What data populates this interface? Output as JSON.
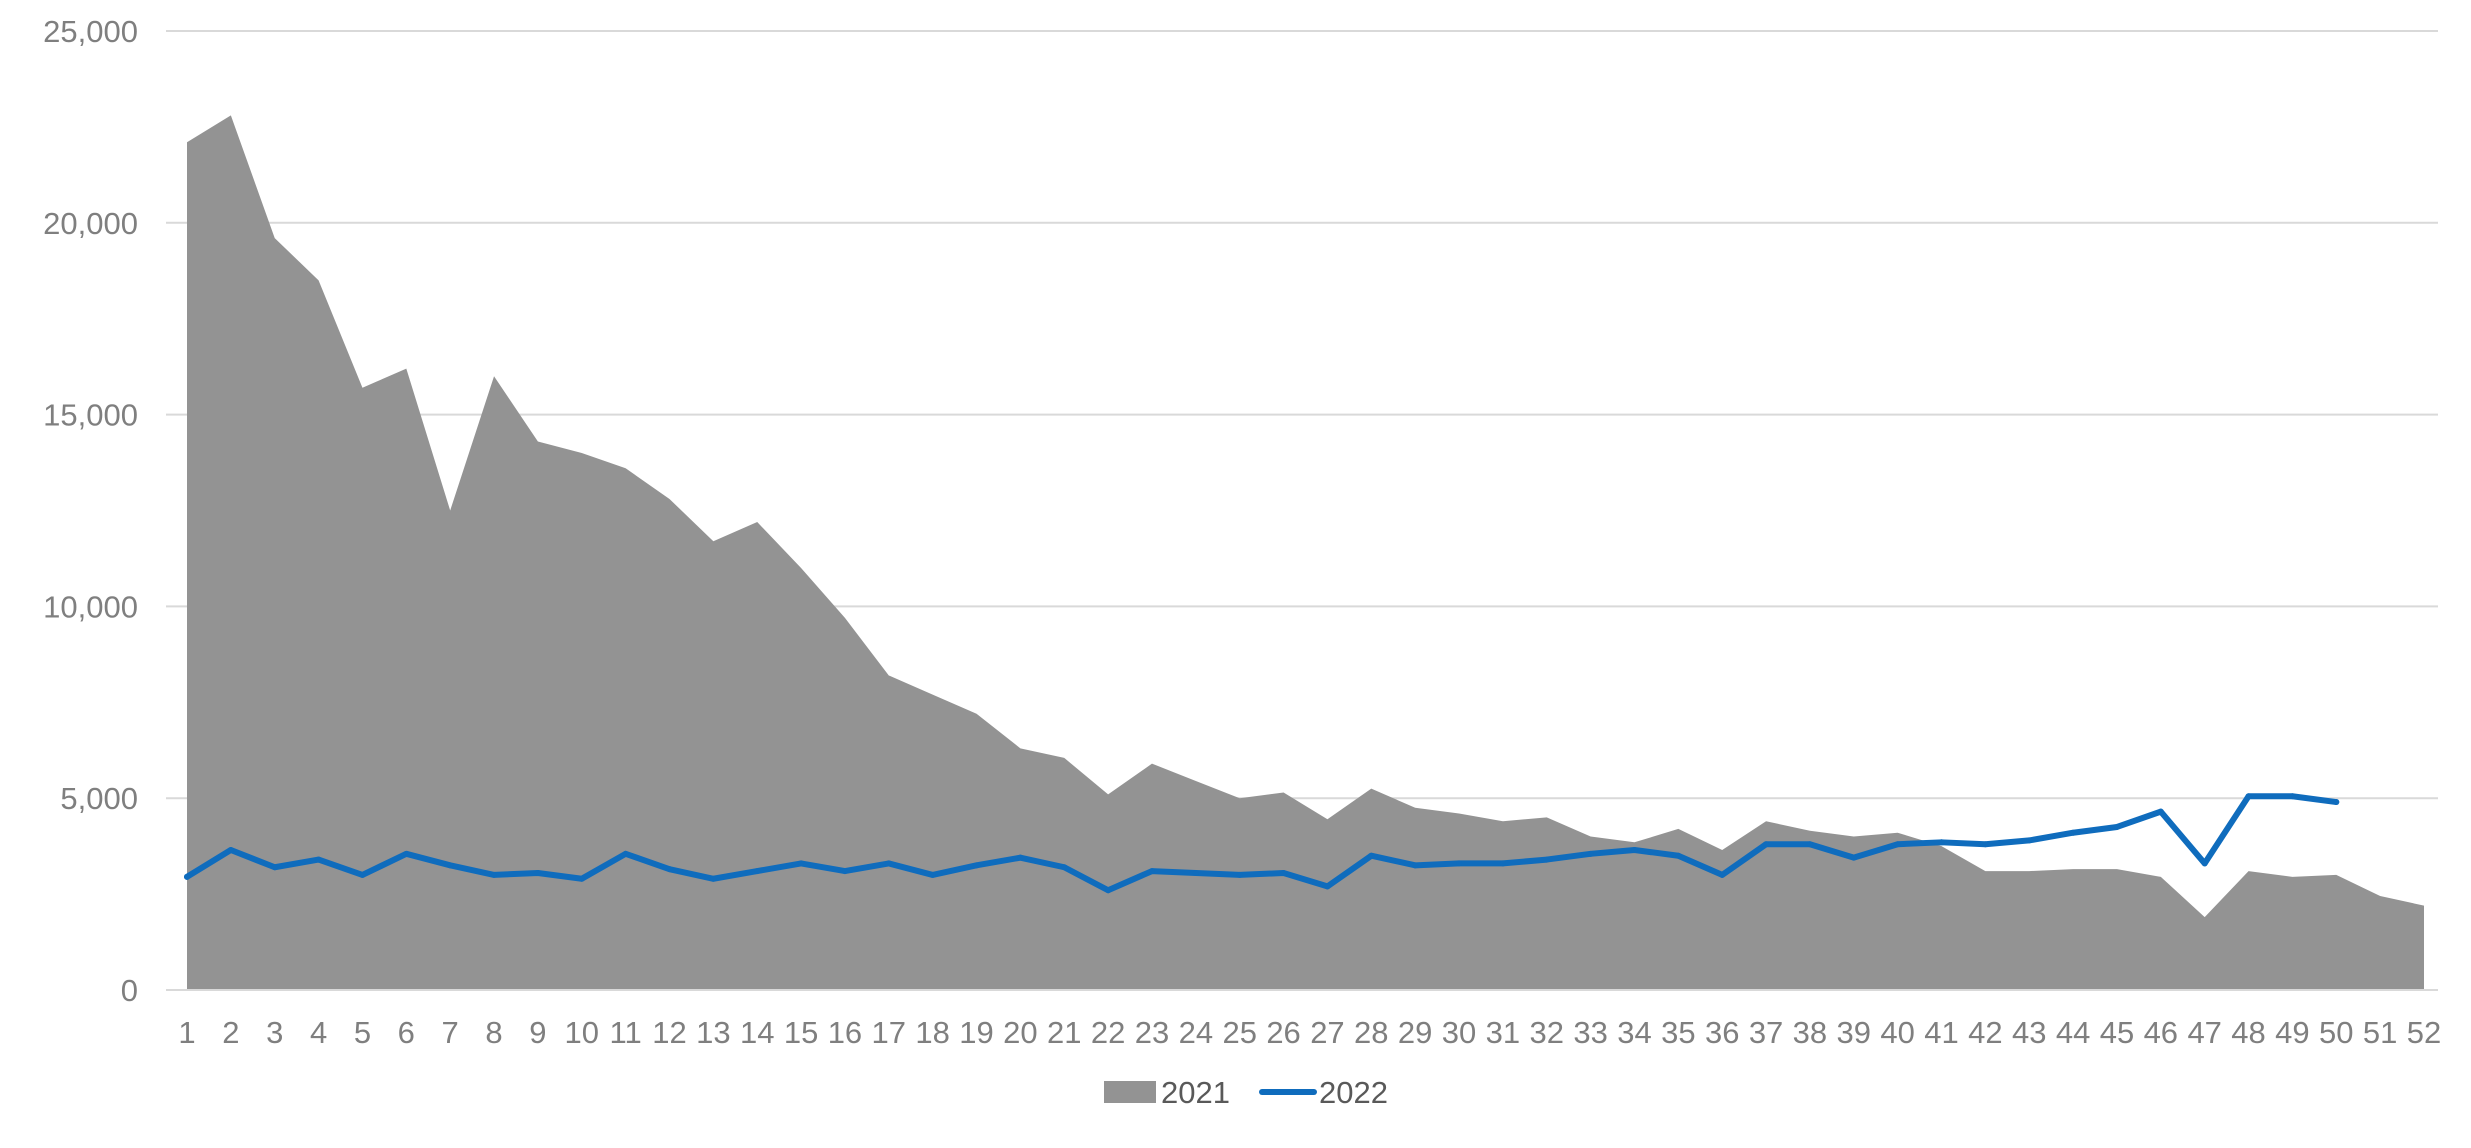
{
  "chart_data": {
    "type": "area",
    "title": "",
    "xlabel": "",
    "ylabel": "",
    "ylim": [
      0,
      25000
    ],
    "y_ticks": [
      0,
      5000,
      10000,
      15000,
      20000,
      25000
    ],
    "y_tick_labels": [
      "0",
      "5,000",
      "10,000",
      "15,000",
      "20,000",
      "25,000"
    ],
    "grid": true,
    "legend_position": "bottom",
    "categories": [
      "1",
      "2",
      "3",
      "4",
      "5",
      "6",
      "7",
      "8",
      "9",
      "10",
      "11",
      "12",
      "13",
      "14",
      "15",
      "16",
      "17",
      "18",
      "19",
      "20",
      "21",
      "22",
      "23",
      "24",
      "25",
      "26",
      "27",
      "28",
      "29",
      "30",
      "31",
      "32",
      "33",
      "34",
      "35",
      "36",
      "37",
      "38",
      "39",
      "40",
      "41",
      "42",
      "43",
      "44",
      "45",
      "46",
      "47",
      "48",
      "49",
      "50",
      "51",
      "52"
    ],
    "series": [
      {
        "name": "2021",
        "kind": "area",
        "color": "#939393",
        "values": [
          22100,
          22800,
          19600,
          18500,
          15700,
          16200,
          12500,
          16000,
          14300,
          14000,
          13600,
          12800,
          11700,
          12200,
          11000,
          9700,
          8200,
          7700,
          7200,
          6300,
          6050,
          5100,
          5900,
          5450,
          5000,
          5150,
          4450,
          5250,
          4750,
          4600,
          4400,
          4500,
          4000,
          3850,
          4200,
          3650,
          4400,
          4150,
          4000,
          4100,
          3750,
          3100,
          3100,
          3150,
          3150,
          2950,
          1900,
          3100,
          2950,
          3000,
          2450,
          2200
        ]
      },
      {
        "name": "2022",
        "kind": "line",
        "color": "#0f6cbd",
        "values": [
          2950,
          3650,
          3200,
          3400,
          3000,
          3550,
          3250,
          3000,
          3050,
          2900,
          3550,
          3150,
          2900,
          3100,
          3300,
          3100,
          3300,
          3000,
          3250,
          3450,
          3200,
          2600,
          3100,
          3050,
          3000,
          3050,
          2700,
          3500,
          3250,
          3300,
          3300,
          3400,
          3550,
          3650,
          3500,
          3000,
          3800,
          3800,
          3450,
          3800,
          3850,
          3800,
          3900,
          4100,
          4250,
          4650,
          3300,
          5050,
          5050,
          4900,
          null,
          null
        ]
      }
    ]
  }
}
